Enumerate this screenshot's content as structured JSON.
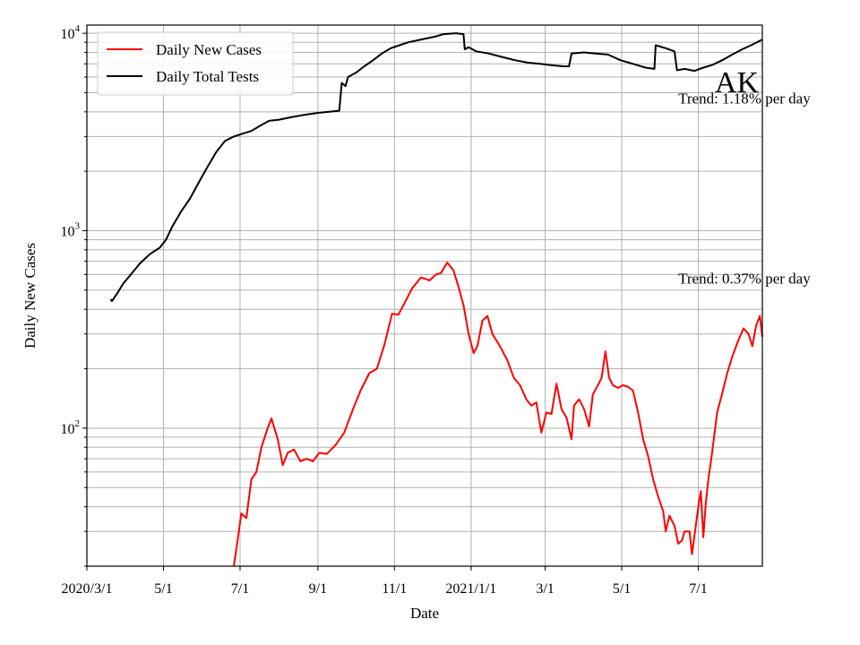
{
  "chart_data": {
    "type": "line",
    "title": "AK",
    "xlabel": "Date",
    "ylabel": "Daily New Cases",
    "yscale": "log",
    "ylim": [
      20,
      11000
    ],
    "xlim": [
      "2020-03-01",
      "2021-08-21"
    ],
    "grid": true,
    "legend_position": "top-left",
    "x_ticks": [
      {
        "date": "2020-03-01",
        "label": "2020/3/1"
      },
      {
        "date": "2020-05-01",
        "label": "5/1"
      },
      {
        "date": "2020-07-01",
        "label": "7/1"
      },
      {
        "date": "2020-09-01",
        "label": "9/1"
      },
      {
        "date": "2020-11-01",
        "label": "11/1"
      },
      {
        "date": "2021-01-01",
        "label": "2021/1/1"
      },
      {
        "date": "2021-03-01",
        "label": "3/1"
      },
      {
        "date": "2021-05-01",
        "label": "5/1"
      },
      {
        "date": "2021-07-01",
        "label": "7/1"
      }
    ],
    "y_ticks": [
      {
        "value": 100,
        "base": "10",
        "exp": "2"
      },
      {
        "value": 1000,
        "base": "10",
        "exp": "3"
      },
      {
        "value": 10000,
        "base": "10",
        "exp": "4"
      }
    ],
    "annotations": [
      {
        "text": "Trend: 1.18% per day",
        "date": "2021-06-15",
        "value": 4400
      },
      {
        "text": "Trend: 0.37% per day",
        "date": "2021-06-15",
        "value": 540
      }
    ],
    "series": [
      {
        "name": "Daily New Cases",
        "color": "#ff0000",
        "points": [
          [
            "2020-06-26",
            20
          ],
          [
            "2020-06-29",
            27
          ],
          [
            "2020-07-02",
            37
          ],
          [
            "2020-07-06",
            35
          ],
          [
            "2020-07-10",
            55
          ],
          [
            "2020-07-14",
            60
          ],
          [
            "2020-07-18",
            80
          ],
          [
            "2020-07-23",
            100
          ],
          [
            "2020-07-26",
            112
          ],
          [
            "2020-07-31",
            88
          ],
          [
            "2020-08-04",
            65
          ],
          [
            "2020-08-08",
            75
          ],
          [
            "2020-08-13",
            78
          ],
          [
            "2020-08-18",
            68
          ],
          [
            "2020-08-23",
            70
          ],
          [
            "2020-08-28",
            68
          ],
          [
            "2020-09-02",
            75
          ],
          [
            "2020-09-08",
            74
          ],
          [
            "2020-09-15",
            82
          ],
          [
            "2020-09-22",
            95
          ],
          [
            "2020-09-29",
            125
          ],
          [
            "2020-10-05",
            155
          ],
          [
            "2020-10-12",
            190
          ],
          [
            "2020-10-18",
            200
          ],
          [
            "2020-10-24",
            265
          ],
          [
            "2020-10-30",
            380
          ],
          [
            "2020-11-04",
            375
          ],
          [
            "2020-11-09",
            430
          ],
          [
            "2020-11-15",
            510
          ],
          [
            "2020-11-22",
            580
          ],
          [
            "2020-11-29",
            560
          ],
          [
            "2020-12-04",
            600
          ],
          [
            "2020-12-08",
            610
          ],
          [
            "2020-12-13",
            690
          ],
          [
            "2020-12-18",
            630
          ],
          [
            "2020-12-22",
            520
          ],
          [
            "2020-12-26",
            420
          ],
          [
            "2020-12-30",
            300
          ],
          [
            "2021-01-03",
            240
          ],
          [
            "2021-01-06",
            260
          ],
          [
            "2021-01-10",
            350
          ],
          [
            "2021-01-14",
            370
          ],
          [
            "2021-01-18",
            300
          ],
          [
            "2021-01-24",
            260
          ],
          [
            "2021-01-30",
            220
          ],
          [
            "2021-02-04",
            180
          ],
          [
            "2021-02-09",
            165
          ],
          [
            "2021-02-14",
            140
          ],
          [
            "2021-02-18",
            130
          ],
          [
            "2021-02-22",
            135
          ],
          [
            "2021-02-26",
            95
          ],
          [
            "2021-03-02",
            120
          ],
          [
            "2021-03-06",
            118
          ],
          [
            "2021-03-10",
            168
          ],
          [
            "2021-03-14",
            125
          ],
          [
            "2021-03-18",
            113
          ],
          [
            "2021-03-22",
            88
          ],
          [
            "2021-03-24",
            130
          ],
          [
            "2021-03-28",
            140
          ],
          [
            "2021-04-01",
            125
          ],
          [
            "2021-04-05",
            102
          ],
          [
            "2021-04-08",
            148
          ],
          [
            "2021-04-12",
            165
          ],
          [
            "2021-04-15",
            180
          ],
          [
            "2021-04-18",
            245
          ],
          [
            "2021-04-21",
            180
          ],
          [
            "2021-04-24",
            165
          ],
          [
            "2021-04-28",
            160
          ],
          [
            "2021-05-02",
            165
          ],
          [
            "2021-05-06",
            162
          ],
          [
            "2021-05-10",
            155
          ],
          [
            "2021-05-14",
            120
          ],
          [
            "2021-05-18",
            88
          ],
          [
            "2021-05-22",
            72
          ],
          [
            "2021-05-26",
            55
          ],
          [
            "2021-05-30",
            45
          ],
          [
            "2021-06-03",
            38
          ],
          [
            "2021-06-05",
            30
          ],
          [
            "2021-06-08",
            36
          ],
          [
            "2021-06-12",
            32
          ],
          [
            "2021-06-15",
            26
          ],
          [
            "2021-06-18",
            27
          ],
          [
            "2021-06-20",
            30
          ],
          [
            "2021-06-24",
            30
          ],
          [
            "2021-06-26",
            23
          ],
          [
            "2021-06-29",
            32
          ],
          [
            "2021-07-01",
            40
          ],
          [
            "2021-07-03",
            48
          ],
          [
            "2021-07-05",
            28
          ],
          [
            "2021-07-07",
            42
          ],
          [
            "2021-07-09",
            55
          ],
          [
            "2021-07-12",
            75
          ],
          [
            "2021-07-16",
            120
          ],
          [
            "2021-07-20",
            150
          ],
          [
            "2021-07-24",
            190
          ],
          [
            "2021-07-28",
            230
          ],
          [
            "2021-08-02",
            280
          ],
          [
            "2021-08-06",
            320
          ],
          [
            "2021-08-10",
            300
          ],
          [
            "2021-08-13",
            260
          ],
          [
            "2021-08-16",
            330
          ],
          [
            "2021-08-19",
            370
          ],
          [
            "2021-08-21",
            290
          ]
        ]
      },
      {
        "name": "Daily Total Tests",
        "color": "#000000",
        "points": [
          [
            "2020-03-20",
            450
          ],
          [
            "2020-03-21",
            440
          ],
          [
            "2020-03-25",
            480
          ],
          [
            "2020-03-30",
            540
          ],
          [
            "2020-04-05",
            600
          ],
          [
            "2020-04-12",
            680
          ],
          [
            "2020-04-20",
            760
          ],
          [
            "2020-04-28",
            820
          ],
          [
            "2020-05-03",
            900
          ],
          [
            "2020-05-08",
            1050
          ],
          [
            "2020-05-15",
            1250
          ],
          [
            "2020-05-22",
            1450
          ],
          [
            "2020-05-29",
            1750
          ],
          [
            "2020-06-05",
            2100
          ],
          [
            "2020-06-12",
            2500
          ],
          [
            "2020-06-19",
            2850
          ],
          [
            "2020-06-26",
            3000
          ],
          [
            "2020-07-03",
            3100
          ],
          [
            "2020-07-10",
            3200
          ],
          [
            "2020-07-17",
            3400
          ],
          [
            "2020-07-24",
            3600
          ],
          [
            "2020-08-01",
            3650
          ],
          [
            "2020-08-10",
            3750
          ],
          [
            "2020-08-20",
            3850
          ],
          [
            "2020-09-01",
            3950
          ],
          [
            "2020-09-10",
            4000
          ],
          [
            "2020-09-18",
            4050
          ],
          [
            "2020-09-20",
            5600
          ],
          [
            "2020-09-23",
            5400
          ],
          [
            "2020-09-25",
            6000
          ],
          [
            "2020-10-01",
            6300
          ],
          [
            "2020-10-08",
            6800
          ],
          [
            "2020-10-15",
            7300
          ],
          [
            "2020-10-22",
            7900
          ],
          [
            "2020-10-29",
            8400
          ],
          [
            "2020-11-05",
            8700
          ],
          [
            "2020-11-12",
            9000
          ],
          [
            "2020-11-19",
            9200
          ],
          [
            "2020-11-26",
            9400
          ],
          [
            "2020-12-03",
            9600
          ],
          [
            "2020-12-10",
            9900
          ],
          [
            "2020-12-20",
            10000
          ],
          [
            "2020-12-26",
            9900
          ],
          [
            "2020-12-27",
            8300
          ],
          [
            "2020-12-30",
            8500
          ],
          [
            "2021-01-05",
            8100
          ],
          [
            "2021-01-15",
            7900
          ],
          [
            "2021-01-25",
            7600
          ],
          [
            "2021-02-05",
            7300
          ],
          [
            "2021-02-15",
            7100
          ],
          [
            "2021-02-25",
            7000
          ],
          [
            "2021-03-05",
            6900
          ],
          [
            "2021-03-15",
            6800
          ],
          [
            "2021-03-20",
            6800
          ],
          [
            "2021-03-22",
            7900
          ],
          [
            "2021-04-01",
            8000
          ],
          [
            "2021-04-10",
            7900
          ],
          [
            "2021-04-20",
            7800
          ],
          [
            "2021-04-30",
            7300
          ],
          [
            "2021-05-10",
            7000
          ],
          [
            "2021-05-20",
            6700
          ],
          [
            "2021-05-27",
            6600
          ],
          [
            "2021-05-28",
            8700
          ],
          [
            "2021-06-05",
            8400
          ],
          [
            "2021-06-12",
            8100
          ],
          [
            "2021-06-14",
            6500
          ],
          [
            "2021-06-20",
            6600
          ],
          [
            "2021-06-28",
            6450
          ],
          [
            "2021-07-05",
            6700
          ],
          [
            "2021-07-12",
            6900
          ],
          [
            "2021-07-20",
            7300
          ],
          [
            "2021-07-28",
            7800
          ],
          [
            "2021-08-05",
            8300
          ],
          [
            "2021-08-12",
            8700
          ],
          [
            "2021-08-21",
            9300
          ]
        ]
      }
    ]
  }
}
